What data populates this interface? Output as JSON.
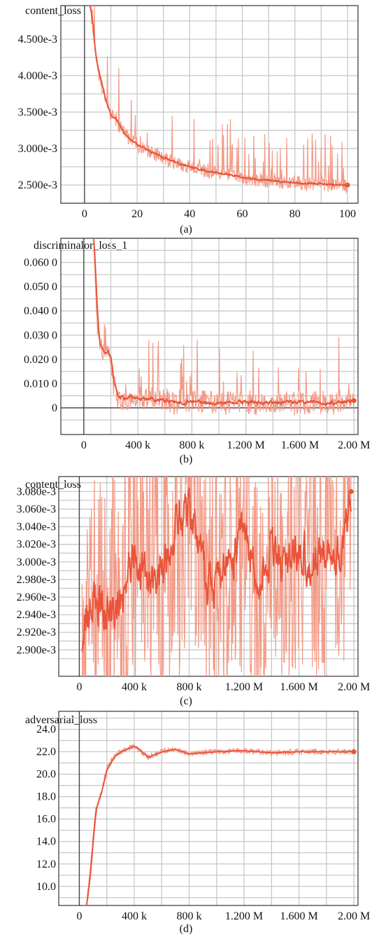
{
  "chart_data": [
    {
      "type": "line",
      "title": "content_loss",
      "caption": "(a)",
      "xlim": [
        -9,
        104
      ],
      "ylim": [
        0.00225,
        0.00496
      ],
      "xticks": [
        0,
        20,
        40,
        60,
        80,
        100
      ],
      "xtick_labels": [
        "0",
        "20",
        "40",
        "60",
        "80",
        "100"
      ],
      "yticks": [
        0.0025,
        0.003,
        0.0035,
        0.004,
        0.0045
      ],
      "ytick_labels": [
        "2.500e-3",
        "3.000e-3",
        "3.500e-3",
        "4.000e-3",
        "4.500e-3"
      ],
      "grid": true,
      "series": [
        {
          "x": [
            1.5,
            3,
            4,
            5,
            6,
            7,
            8,
            10,
            12,
            15,
            18,
            20,
            25,
            30,
            35,
            40,
            45,
            50,
            55,
            60,
            65,
            70,
            75,
            80,
            85,
            90,
            95,
            100
          ],
          "y": [
            0.0051,
            0.0047,
            0.0043,
            0.0041,
            0.00395,
            0.0038,
            0.00365,
            0.00345,
            0.0034,
            0.0032,
            0.0031,
            0.00305,
            0.00295,
            0.00287,
            0.0028,
            0.00275,
            0.0027,
            0.00267,
            0.00264,
            0.0026,
            0.00258,
            0.00256,
            0.00254,
            0.00253,
            0.00252,
            0.00251,
            0.0025,
            0.0025
          ]
        }
      ]
    },
    {
      "type": "line",
      "title": "discriminalor_loss_1",
      "caption": "(b)",
      "xlim": [
        -170000,
        2030000
      ],
      "ylim": [
        -0.011,
        0.07
      ],
      "xticks": [
        0,
        400000,
        800000,
        1200000,
        1600000,
        2000000
      ],
      "xtick_labels": [
        "0",
        "400 k",
        "800 k",
        "1.200 M",
        "1.600 M",
        "2.00 M"
      ],
      "yticks": [
        0,
        0.01,
        0.02,
        0.03,
        0.04,
        0.05,
        0.06
      ],
      "ytick_labels": [
        "0",
        "0.010 0",
        "0.020 0",
        "0.030 0",
        "0.040 0",
        "0.050 0",
        "0.060 0"
      ],
      "grid": true,
      "series": [
        {
          "x": [
            60000,
            80000,
            100000,
            120000,
            150000,
            180000,
            200000,
            220000,
            250000,
            300000,
            350000,
            400000,
            500000,
            600000,
            700000,
            800000,
            1000000,
            1200000,
            1400000,
            1600000,
            1800000,
            2000000
          ],
          "y": [
            0.08,
            0.06,
            0.035,
            0.025,
            0.022,
            0.023,
            0.02,
            0.01,
            0.005,
            0.004,
            0.0045,
            0.004,
            0.0035,
            0.003,
            0.002,
            0.0025,
            0.002,
            0.0025,
            0.002,
            0.0025,
            0.002,
            0.003
          ]
        }
      ]
    },
    {
      "type": "line",
      "title": "content_loss",
      "caption": "(c)",
      "xlim": [
        -150000,
        2030000
      ],
      "ylim": [
        0.00287,
        0.003097
      ],
      "xticks": [
        0,
        400000,
        800000,
        1200000,
        1600000,
        2000000
      ],
      "xtick_labels": [
        "0",
        "400 k",
        "800 k",
        "1.200 M",
        "1.600 M",
        "2.00 M"
      ],
      "yticks": [
        0.0029,
        0.00292,
        0.00294,
        0.00296,
        0.00298,
        0.003,
        0.00302,
        0.00304,
        0.00306,
        0.00308
      ],
      "ytick_labels": [
        "2.900e-3",
        "2.920e-3",
        "2.940e-3",
        "2.960e-3",
        "2.980e-3",
        "3.000e-3",
        "3.020e-3",
        "3.040e-3",
        "3.060e-3",
        "3.080e-3"
      ],
      "grid": true,
      "series": [
        {
          "x": [
            20000,
            100000,
            200000,
            300000,
            400000,
            500000,
            600000,
            700000,
            800000,
            900000,
            1000000,
            1100000,
            1200000,
            1300000,
            1400000,
            1500000,
            1600000,
            1700000,
            1800000,
            1900000,
            1980000
          ],
          "y": [
            0.00293,
            0.00296,
            0.00294,
            0.00295,
            0.00301,
            0.00297,
            0.003,
            0.00304,
            0.00306,
            0.00299,
            0.00297,
            0.003,
            0.00303,
            0.00298,
            0.00301,
            0.003,
            0.00302,
            0.00299,
            0.00303,
            0.00301,
            0.00308
          ]
        }
      ]
    },
    {
      "type": "line",
      "title": "adversarial_loss",
      "caption": "(d)",
      "xlim": [
        -150000,
        2030000
      ],
      "ylim": [
        8.3,
        25.6
      ],
      "xticks": [
        0,
        400000,
        800000,
        1200000,
        1600000,
        2000000
      ],
      "xtick_labels": [
        "0",
        "400 k",
        "800 k",
        "1.200 M",
        "1.600 M",
        "2.00 M"
      ],
      "yticks": [
        10,
        12,
        14,
        16,
        18,
        20,
        22,
        24
      ],
      "ytick_labels": [
        "10.0",
        "12.0",
        "14.0",
        "16.0",
        "18.0",
        "20.0",
        "22.0",
        "24.0"
      ],
      "grid": true,
      "series": [
        {
          "x": [
            50000,
            80000,
            100000,
            120000,
            150000,
            200000,
            250000,
            300000,
            350000,
            400000,
            450000,
            500000,
            600000,
            700000,
            800000,
            1000000,
            1200000,
            1400000,
            1600000,
            1800000,
            2000000
          ],
          "y": [
            8.2,
            11.5,
            14.5,
            17,
            18,
            20.5,
            21.5,
            22,
            22.3,
            22.5,
            22,
            21.5,
            22,
            22.2,
            21.8,
            22,
            22.1,
            21.9,
            22,
            22,
            22
          ]
        }
      ]
    }
  ]
}
